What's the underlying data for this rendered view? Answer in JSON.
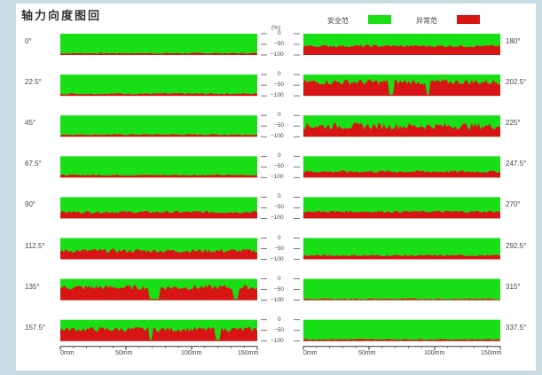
{
  "title": "轴力向度图回",
  "legend": {
    "items": [
      {
        "label": "安全范",
        "color": "#19e016"
      },
      {
        "label": "异常范",
        "color": "#d81515"
      }
    ]
  },
  "colors": {
    "background": "#19e016",
    "signal": "#d81515"
  },
  "scale": {
    "unit": "(%)",
    "ticks": [
      "0",
      "−50",
      "−100"
    ]
  },
  "x_axis": {
    "ticks": [
      "0mm",
      "50mm",
      "100mm",
      "150mm"
    ]
  },
  "chart_data": {
    "type": "area",
    "x_unit": "mm",
    "x_range": [
      0,
      150
    ],
    "y_range": [
      0,
      -100
    ],
    "panels": [
      {
        "angle": "0°",
        "column": "left",
        "level": 8,
        "roughness": 3,
        "gaps": []
      },
      {
        "angle": "22.5°",
        "column": "left",
        "level": 10,
        "roughness": 4,
        "gaps": []
      },
      {
        "angle": "45°",
        "column": "left",
        "level": 10,
        "roughness": 3,
        "gaps": []
      },
      {
        "angle": "67.5°",
        "column": "left",
        "level": 12,
        "roughness": 3,
        "gaps": []
      },
      {
        "angle": "90°",
        "column": "left",
        "level": 30,
        "roughness": 6,
        "gaps": []
      },
      {
        "angle": "112.5°",
        "column": "left",
        "level": 40,
        "roughness": 10,
        "gaps": []
      },
      {
        "angle": "135°",
        "column": "left",
        "level": 60,
        "roughness": 12,
        "gaps": [
          [
            0.45,
            0.5
          ],
          [
            0.88,
            0.9
          ]
        ]
      },
      {
        "angle": "157.5°",
        "column": "left",
        "level": 55,
        "roughness": 12,
        "gaps": [
          [
            0.45,
            0.47
          ],
          [
            0.79,
            0.81
          ]
        ]
      },
      {
        "angle": "180°",
        "column": "right",
        "level": 42,
        "roughness": 6,
        "gaps": []
      },
      {
        "angle": "202.5°",
        "column": "right",
        "level": 65,
        "roughness": 14,
        "gaps": [
          [
            0.43,
            0.46
          ],
          [
            0.62,
            0.64
          ]
        ]
      },
      {
        "angle": "225°",
        "column": "right",
        "level": 50,
        "roughness": 16,
        "gaps": []
      },
      {
        "angle": "247.5°",
        "column": "right",
        "level": 28,
        "roughness": 6,
        "gaps": []
      },
      {
        "angle": "270°",
        "column": "right",
        "level": 32,
        "roughness": 5,
        "gaps": []
      },
      {
        "angle": "292.5°",
        "column": "right",
        "level": 18,
        "roughness": 4,
        "gaps": []
      },
      {
        "angle": "315°",
        "column": "right",
        "level": 6,
        "roughness": 3,
        "gaps": []
      },
      {
        "angle": "337.5°",
        "column": "right",
        "level": 8,
        "roughness": 3,
        "gaps": []
      }
    ]
  }
}
